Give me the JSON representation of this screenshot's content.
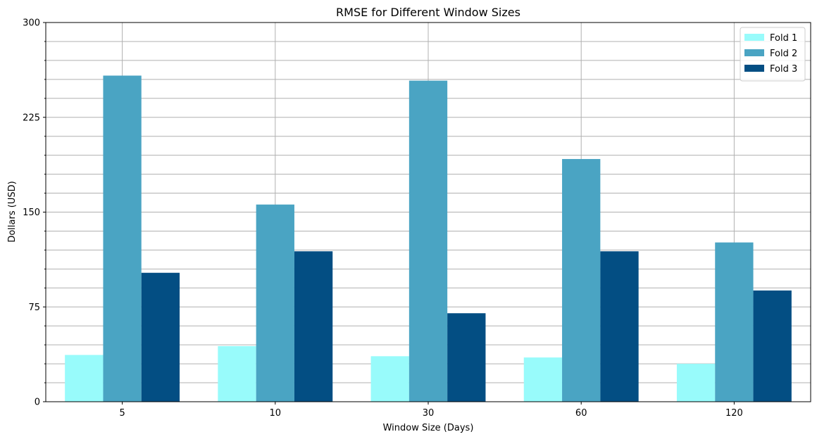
{
  "chart_data": {
    "type": "bar",
    "title": "RMSE for Different Window Sizes",
    "xlabel": "Window Size (Days)",
    "ylabel": "Dollars (USD)",
    "categories": [
      "5",
      "10",
      "30",
      "60",
      "120"
    ],
    "series": [
      {
        "name": "Fold 1",
        "color": "#98fbfb",
        "values": [
          37,
          44,
          36,
          35,
          30
        ]
      },
      {
        "name": "Fold 2",
        "color": "#4aa4c3",
        "values": [
          258,
          156,
          254,
          192,
          126
        ]
      },
      {
        "name": "Fold 3",
        "color": "#034e83",
        "values": [
          102,
          119,
          70,
          119,
          88
        ]
      }
    ],
    "ylim": [
      0,
      300
    ],
    "yticks": [
      0,
      75,
      150,
      225,
      300
    ],
    "y_minor_step": 15,
    "grid": true,
    "legend": "top-right"
  }
}
